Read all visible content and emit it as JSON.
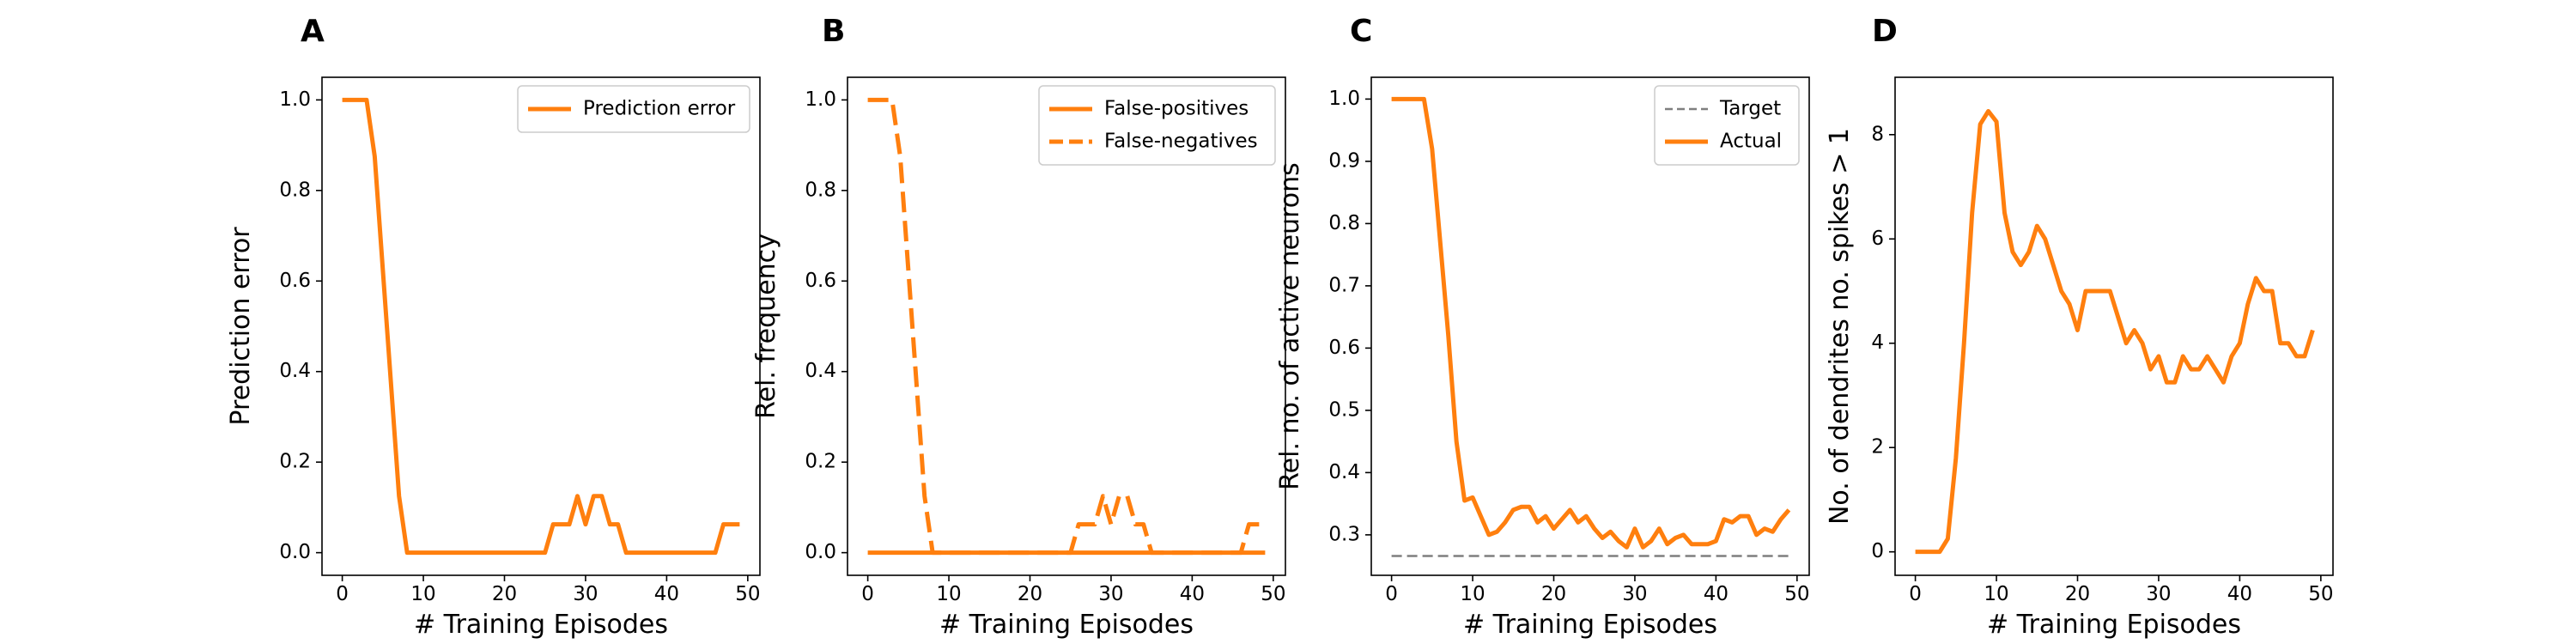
{
  "colors": {
    "series": "#ff7f0e",
    "target": "#7f7f7f",
    "legend_border": "#cccccc"
  },
  "chart_data": [
    {
      "panel": "A",
      "type": "line",
      "title": "",
      "xlabel": "# Training Episodes",
      "ylabel": "Prediction error",
      "xlim": [
        -2.5,
        51.5
      ],
      "ylim": [
        -0.05,
        1.05
      ],
      "xticks": [
        0,
        10,
        20,
        30,
        40,
        50
      ],
      "yticks": [
        0.0,
        0.2,
        0.4,
        0.6,
        0.8,
        1.0
      ],
      "ytick_labels": [
        "0.0",
        "0.2",
        "0.4",
        "0.6",
        "0.8",
        "1.0"
      ],
      "legend_position": "top-right",
      "series": [
        {
          "name": "Prediction error",
          "style": "solid",
          "x": [
            0,
            1,
            2,
            3,
            4,
            5,
            6,
            7,
            8,
            9,
            10,
            11,
            12,
            13,
            14,
            15,
            16,
            17,
            18,
            19,
            20,
            21,
            22,
            23,
            24,
            25,
            26,
            27,
            28,
            29,
            30,
            31,
            32,
            33,
            34,
            35,
            36,
            37,
            38,
            39,
            40,
            41,
            42,
            43,
            44,
            45,
            46,
            47,
            48,
            49
          ],
          "y": [
            1.0,
            1.0,
            1.0,
            1.0,
            0.875,
            0.625,
            0.375,
            0.125,
            0,
            0,
            0,
            0,
            0,
            0,
            0,
            0,
            0,
            0,
            0,
            0,
            0,
            0,
            0,
            0,
            0,
            0,
            0.0625,
            0.0625,
            0.0625,
            0.125,
            0.0625,
            0.125,
            0.125,
            0.0625,
            0.0625,
            0,
            0,
            0,
            0,
            0,
            0,
            0,
            0,
            0,
            0,
            0,
            0,
            0.0625,
            0.0625,
            0.0625
          ]
        }
      ]
    },
    {
      "panel": "B",
      "type": "line",
      "title": "",
      "xlabel": "# Training Episodes",
      "ylabel": "Rel. frequency",
      "xlim": [
        -2.5,
        51.5
      ],
      "ylim": [
        -0.05,
        1.05
      ],
      "xticks": [
        0,
        10,
        20,
        30,
        40,
        50
      ],
      "yticks": [
        0.0,
        0.2,
        0.4,
        0.6,
        0.8,
        1.0
      ],
      "ytick_labels": [
        "0.0",
        "0.2",
        "0.4",
        "0.6",
        "0.8",
        "1.0"
      ],
      "legend_position": "top-right",
      "series": [
        {
          "name": "False-positives",
          "style": "solid",
          "x": [
            0,
            49
          ],
          "y": [
            0,
            0
          ]
        },
        {
          "name": "False-negatives",
          "style": "dashed",
          "x": [
            0,
            1,
            2,
            3,
            4,
            5,
            6,
            7,
            8,
            9,
            10,
            11,
            12,
            13,
            14,
            15,
            16,
            17,
            18,
            19,
            20,
            21,
            22,
            23,
            24,
            25,
            26,
            27,
            28,
            29,
            30,
            31,
            32,
            33,
            34,
            35,
            36,
            37,
            38,
            39,
            40,
            41,
            42,
            43,
            44,
            45,
            46,
            47,
            48,
            49
          ],
          "y": [
            1.0,
            1.0,
            1.0,
            1.0,
            0.875,
            0.625,
            0.375,
            0.125,
            0,
            0,
            0,
            0,
            0,
            0,
            0,
            0,
            0,
            0,
            0,
            0,
            0,
            0,
            0,
            0,
            0,
            0,
            0.0625,
            0.0625,
            0.0625,
            0.125,
            0.0625,
            0.125,
            0.125,
            0.0625,
            0.0625,
            0,
            0,
            0,
            0,
            0,
            0,
            0,
            0,
            0,
            0,
            0,
            0,
            0.0625,
            0.0625,
            0.0625
          ]
        }
      ]
    },
    {
      "panel": "C",
      "type": "line",
      "title": "",
      "xlabel": "# Training Episodes",
      "ylabel": "Rel. no. of active neurons",
      "xlim": [
        -2.5,
        51.5
      ],
      "ylim": [
        0.235,
        1.035
      ],
      "xticks": [
        0,
        10,
        20,
        30,
        40,
        50
      ],
      "yticks": [
        0.3,
        0.4,
        0.5,
        0.6,
        0.7,
        0.8,
        0.9,
        1.0
      ],
      "ytick_labels": [
        "0.3",
        "0.4",
        "0.5",
        "0.6",
        "0.7",
        "0.8",
        "0.9",
        "1.0"
      ],
      "legend_position": "top-right",
      "series": [
        {
          "name": "Target",
          "style": "dashed",
          "x": [
            0,
            49
          ],
          "y": [
            0.266,
            0.266
          ]
        },
        {
          "name": "Actual",
          "style": "solid",
          "x": [
            0,
            1,
            2,
            3,
            4,
            5,
            6,
            7,
            8,
            9,
            10,
            11,
            12,
            13,
            14,
            15,
            16,
            17,
            18,
            19,
            20,
            21,
            22,
            23,
            24,
            25,
            26,
            27,
            28,
            29,
            30,
            31,
            32,
            33,
            34,
            35,
            36,
            37,
            38,
            39,
            40,
            41,
            42,
            43,
            44,
            45,
            46,
            47,
            48,
            49
          ],
          "y": [
            1.0,
            1.0,
            1.0,
            1.0,
            1.0,
            0.92,
            0.77,
            0.62,
            0.45,
            0.355,
            0.36,
            0.33,
            0.3,
            0.305,
            0.32,
            0.34,
            0.345,
            0.345,
            0.32,
            0.33,
            0.31,
            0.325,
            0.34,
            0.32,
            0.33,
            0.31,
            0.295,
            0.305,
            0.29,
            0.28,
            0.31,
            0.28,
            0.29,
            0.31,
            0.285,
            0.295,
            0.3,
            0.285,
            0.285,
            0.285,
            0.29,
            0.325,
            0.32,
            0.33,
            0.33,
            0.3,
            0.31,
            0.305,
            0.325,
            0.34
          ]
        }
      ]
    },
    {
      "panel": "D",
      "type": "line",
      "title": "",
      "xlabel": "# Training Episodes",
      "ylabel": "No. of dendrites no. spikes > 1",
      "xlim": [
        -2.5,
        51.5
      ],
      "ylim": [
        -0.45,
        9.1
      ],
      "xticks": [
        0,
        10,
        20,
        30,
        40,
        50
      ],
      "yticks": [
        0,
        2,
        4,
        6,
        8
      ],
      "ytick_labels": [
        "0",
        "2",
        "4",
        "6",
        "8"
      ],
      "legend_position": "",
      "series": [
        {
          "name": "",
          "style": "solid",
          "x": [
            0,
            1,
            2,
            3,
            4,
            5,
            6,
            7,
            8,
            9,
            10,
            11,
            12,
            13,
            14,
            15,
            16,
            17,
            18,
            19,
            20,
            21,
            22,
            23,
            24,
            25,
            26,
            27,
            28,
            29,
            30,
            31,
            32,
            33,
            34,
            35,
            36,
            37,
            38,
            39,
            40,
            41,
            42,
            43,
            44,
            45,
            46,
            47,
            48,
            49
          ],
          "y": [
            0,
            0,
            0,
            0,
            0.25,
            1.8,
            4.0,
            6.5,
            8.2,
            8.45,
            8.25,
            6.5,
            5.75,
            5.5,
            5.75,
            6.25,
            6.0,
            5.5,
            5.0,
            4.75,
            4.25,
            5.0,
            5.0,
            5.0,
            5.0,
            4.5,
            4.0,
            4.25,
            4.0,
            3.5,
            3.75,
            3.25,
            3.25,
            3.75,
            3.5,
            3.5,
            3.75,
            3.5,
            3.25,
            3.75,
            4.0,
            4.75,
            5.25,
            5.0,
            5.0,
            4.0,
            4.0,
            3.75,
            3.75,
            4.25
          ]
        }
      ]
    }
  ]
}
